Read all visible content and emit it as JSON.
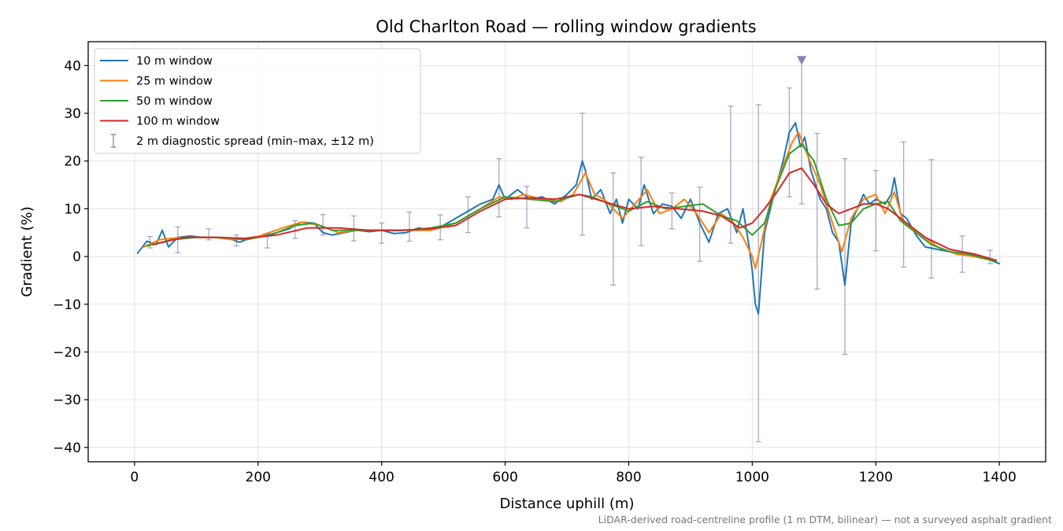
{
  "chart_data": {
    "type": "line",
    "title": "Old Charlton Road — rolling window gradients",
    "xlabel": "Distance uphill (m)",
    "ylabel": "Gradient (%)",
    "footnote": "LiDAR-derived road-centreline profile (1 m DTM, bilinear) — not a surveyed asphalt gradient",
    "xlim": [
      -75,
      1475
    ],
    "ylim": [
      -43,
      45
    ],
    "xticks": [
      0,
      200,
      400,
      600,
      800,
      1000,
      1200,
      1400
    ],
    "yticks": [
      -40,
      -30,
      -20,
      -10,
      0,
      10,
      20,
      30,
      40
    ],
    "grid": true,
    "legend_position": "top-left",
    "series": [
      {
        "name": "10 m window",
        "color": "#1f77b4",
        "x": [
          5,
          20,
          35,
          45,
          55,
          70,
          90,
          110,
          130,
          150,
          170,
          190,
          210,
          230,
          250,
          270,
          290,
          305,
          320,
          340,
          360,
          380,
          400,
          420,
          440,
          460,
          480,
          500,
          520,
          540,
          560,
          580,
          590,
          600,
          620,
          640,
          660,
          680,
          700,
          715,
          725,
          730,
          740,
          755,
          770,
          780,
          790,
          800,
          815,
          825,
          840,
          855,
          870,
          885,
          900,
          915,
          930,
          945,
          960,
          975,
          985,
          995,
          1000,
          1005,
          1010,
          1020,
          1035,
          1050,
          1060,
          1070,
          1078,
          1085,
          1095,
          1110,
          1120,
          1130,
          1140,
          1150,
          1160,
          1170,
          1180,
          1190,
          1200,
          1215,
          1225,
          1230,
          1240,
          1250,
          1265,
          1280,
          1300,
          1320,
          1340,
          1360,
          1380,
          1400
        ],
        "y": [
          0.7,
          3.2,
          2.5,
          5.5,
          2.0,
          4.0,
          4.3,
          4.0,
          4.0,
          3.9,
          3.0,
          4.0,
          4.3,
          5.0,
          5.8,
          7.2,
          7.0,
          5.0,
          4.5,
          5.0,
          5.5,
          5.2,
          5.5,
          4.8,
          5.0,
          6.0,
          5.5,
          6.5,
          8.0,
          9.5,
          11.0,
          12.0,
          15.0,
          12.0,
          14.0,
          12.0,
          12.5,
          11.0,
          13.0,
          15.0,
          20.0,
          18.0,
          12.0,
          14.0,
          9.0,
          12.0,
          7.0,
          12.0,
          10.0,
          15.0,
          9.0,
          11.0,
          10.5,
          8.0,
          12.0,
          7.0,
          3.0,
          9.0,
          10.0,
          5.0,
          10.0,
          2.0,
          -3.0,
          -10.0,
          -12.0,
          5.0,
          13.0,
          20.0,
          26.0,
          28.0,
          23.0,
          25.0,
          18.0,
          12.0,
          10.0,
          5.0,
          3.0,
          -6.0,
          7.0,
          10.0,
          13.0,
          11.0,
          12.0,
          11.0,
          13.0,
          16.5,
          9.0,
          8.0,
          4.5,
          2.0,
          1.5,
          1.0,
          0.5,
          0.0,
          -0.5,
          -1.5
        ]
      },
      {
        "name": "25 m window",
        "color": "#ff7f0e",
        "x": [
          15,
          40,
          60,
          80,
          100,
          130,
          160,
          200,
          240,
          270,
          300,
          330,
          360,
          400,
          440,
          480,
          520,
          560,
          590,
          610,
          630,
          660,
          690,
          710,
          730,
          745,
          760,
          775,
          790,
          810,
          830,
          850,
          870,
          890,
          910,
          930,
          950,
          970,
          985,
          1000,
          1005,
          1015,
          1030,
          1050,
          1065,
          1075,
          1090,
          1110,
          1130,
          1145,
          1160,
          1180,
          1200,
          1215,
          1230,
          1245,
          1270,
          1300,
          1330,
          1360,
          1395
        ],
        "y": [
          2.0,
          3.5,
          3.8,
          4.0,
          4.0,
          4.0,
          3.5,
          4.2,
          6.0,
          7.2,
          6.5,
          5.0,
          5.5,
          5.5,
          5.5,
          5.5,
          7.0,
          10.0,
          12.5,
          12.0,
          13.0,
          12.0,
          11.5,
          13.0,
          17.5,
          13.0,
          12.0,
          10.0,
          8.0,
          11.0,
          14.0,
          9.0,
          10.0,
          12.0,
          9.0,
          5.0,
          9.0,
          7.0,
          4.0,
          0.0,
          -2.5,
          3.0,
          12.0,
          19.0,
          24.0,
          26.0,
          21.0,
          15.0,
          7.0,
          1.0,
          8.0,
          12.0,
          13.0,
          9.0,
          13.5,
          7.0,
          5.0,
          2.0,
          0.5,
          0.0,
          -1.0
        ]
      },
      {
        "name": "50 m window",
        "color": "#2ca02c",
        "x": [
          20,
          60,
          100,
          140,
          180,
          220,
          260,
          290,
          320,
          360,
          400,
          440,
          480,
          520,
          560,
          600,
          640,
          680,
          720,
          740,
          770,
          800,
          830,
          860,
          890,
          920,
          950,
          975,
          1000,
          1020,
          1040,
          1060,
          1080,
          1100,
          1120,
          1140,
          1160,
          1180,
          1200,
          1220,
          1240,
          1260,
          1290,
          1320,
          1350,
          1395
        ],
        "y": [
          2.2,
          3.5,
          4.0,
          4.0,
          3.5,
          4.5,
          6.5,
          7.0,
          5.5,
          5.5,
          5.5,
          5.5,
          6.0,
          7.0,
          10.0,
          12.5,
          12.0,
          11.5,
          13.0,
          12.5,
          11.0,
          9.5,
          11.5,
          10.0,
          10.5,
          11.0,
          8.5,
          7.5,
          4.5,
          7.0,
          15.0,
          21.5,
          23.5,
          20.0,
          12.0,
          6.5,
          7.0,
          10.0,
          11.0,
          11.5,
          7.5,
          5.5,
          2.5,
          1.0,
          0.5,
          -1.0
        ]
      },
      {
        "name": "100 m window",
        "color": "#d62728",
        "x": [
          30,
          80,
          130,
          180,
          230,
          280,
          330,
          380,
          430,
          480,
          520,
          560,
          600,
          640,
          680,
          720,
          760,
          800,
          840,
          880,
          920,
          950,
          980,
          1000,
          1020,
          1040,
          1060,
          1080,
          1100,
          1120,
          1140,
          1160,
          1180,
          1200,
          1220,
          1250,
          1280,
          1320,
          1360,
          1395
        ],
        "y": [
          2.5,
          4.0,
          4.0,
          3.8,
          4.5,
          6.0,
          6.0,
          5.5,
          5.5,
          5.8,
          6.5,
          9.5,
          12.0,
          12.3,
          12.0,
          13.0,
          11.5,
          10.0,
          10.5,
          10.0,
          9.5,
          8.5,
          6.0,
          7.0,
          10.0,
          13.5,
          17.5,
          18.5,
          15.0,
          11.0,
          9.0,
          10.0,
          11.0,
          11.0,
          10.0,
          7.0,
          4.0,
          1.5,
          0.5,
          -0.8
        ]
      },
      {
        "name": "2 m diagnostic spread (min–max, ±12 m)",
        "type": "errorbar",
        "color": "#8b7fb5",
        "points": [
          {
            "x": 25,
            "low": 1.8,
            "high": 4.2
          },
          {
            "x": 70,
            "low": 0.8,
            "high": 6.2
          },
          {
            "x": 120,
            "low": 3.5,
            "high": 5.8
          },
          {
            "x": 165,
            "low": 2.2,
            "high": 4.5
          },
          {
            "x": 215,
            "low": 1.8,
            "high": 4.8
          },
          {
            "x": 260,
            "low": 3.8,
            "high": 7.5
          },
          {
            "x": 305,
            "low": 4.5,
            "high": 8.8
          },
          {
            "x": 355,
            "low": 3.3,
            "high": 8.5
          },
          {
            "x": 400,
            "low": 2.8,
            "high": 7.0
          },
          {
            "x": 445,
            "low": 3.2,
            "high": 9.3
          },
          {
            "x": 495,
            "low": 3.5,
            "high": 8.7
          },
          {
            "x": 540,
            "low": 5.0,
            "high": 12.5
          },
          {
            "x": 590,
            "low": 8.3,
            "high": 20.5
          },
          {
            "x": 635,
            "low": 6.0,
            "high": 14.7
          },
          {
            "x": 725,
            "low": 4.5,
            "high": 30.0
          },
          {
            "x": 775,
            "low": -6.0,
            "high": 17.5
          },
          {
            "x": 820,
            "low": 2.3,
            "high": 20.8
          },
          {
            "x": 870,
            "low": 5.8,
            "high": 13.3
          },
          {
            "x": 915,
            "low": -1.0,
            "high": 14.5
          },
          {
            "x": 965,
            "low": 2.8,
            "high": 31.5
          },
          {
            "x": 1010,
            "low": -38.8,
            "high": 31.8
          },
          {
            "x": 1060,
            "low": 12.5,
            "high": 35.3
          },
          {
            "x": 1080,
            "low": 11.0,
            "high": 41.0
          },
          {
            "x": 1105,
            "low": -6.8,
            "high": 25.8
          },
          {
            "x": 1150,
            "low": -20.5,
            "high": 20.5
          },
          {
            "x": 1200,
            "low": 1.2,
            "high": 18.0
          },
          {
            "x": 1245,
            "low": -2.2,
            "high": 24.0
          },
          {
            "x": 1290,
            "low": -4.5,
            "high": 20.3
          },
          {
            "x": 1340,
            "low": -3.3,
            "high": 4.3
          },
          {
            "x": 1385,
            "low": -1.5,
            "high": 1.3
          }
        ]
      }
    ],
    "annotations": [
      {
        "type": "marker",
        "shape": "triangle-down",
        "x": 1080,
        "y": 41.0,
        "color": "#8b7fb5"
      }
    ]
  }
}
